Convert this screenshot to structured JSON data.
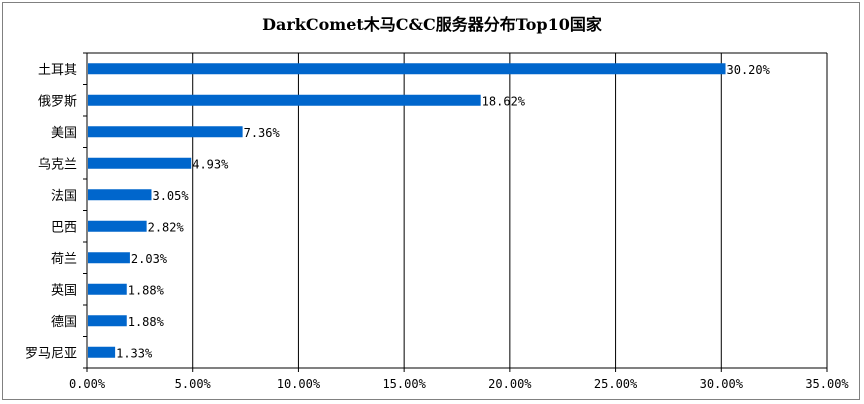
{
  "chart_data": {
    "type": "bar",
    "orientation": "horizontal",
    "title": "DarkComet木马C&C服务器分布Top10国家",
    "categories": [
      "土耳其",
      "俄罗斯",
      "美国",
      "乌克兰",
      "法国",
      "巴西",
      "荷兰",
      "英国",
      "德国",
      "罗马尼亚"
    ],
    "values": [
      30.2,
      18.62,
      7.36,
      4.93,
      3.05,
      2.82,
      2.03,
      1.88,
      1.88,
      1.33
    ],
    "value_labels": [
      "30.20%",
      "18.62%",
      "7.36%",
      "4.93%",
      "3.05%",
      "2.82%",
      "2.03%",
      "1.88%",
      "1.88%",
      "1.33%"
    ],
    "xlim": [
      0,
      35
    ],
    "x_ticks": [
      0,
      5,
      10,
      15,
      20,
      25,
      30,
      35
    ],
    "x_tick_labels": [
      "0.00%",
      "5.00%",
      "10.00%",
      "15.00%",
      "20.00%",
      "25.00%",
      "30.00%",
      "35.00%"
    ],
    "xlabel": "",
    "ylabel": "",
    "grid": "vertical",
    "legend": "none",
    "bar_color": "#0066CC"
  }
}
